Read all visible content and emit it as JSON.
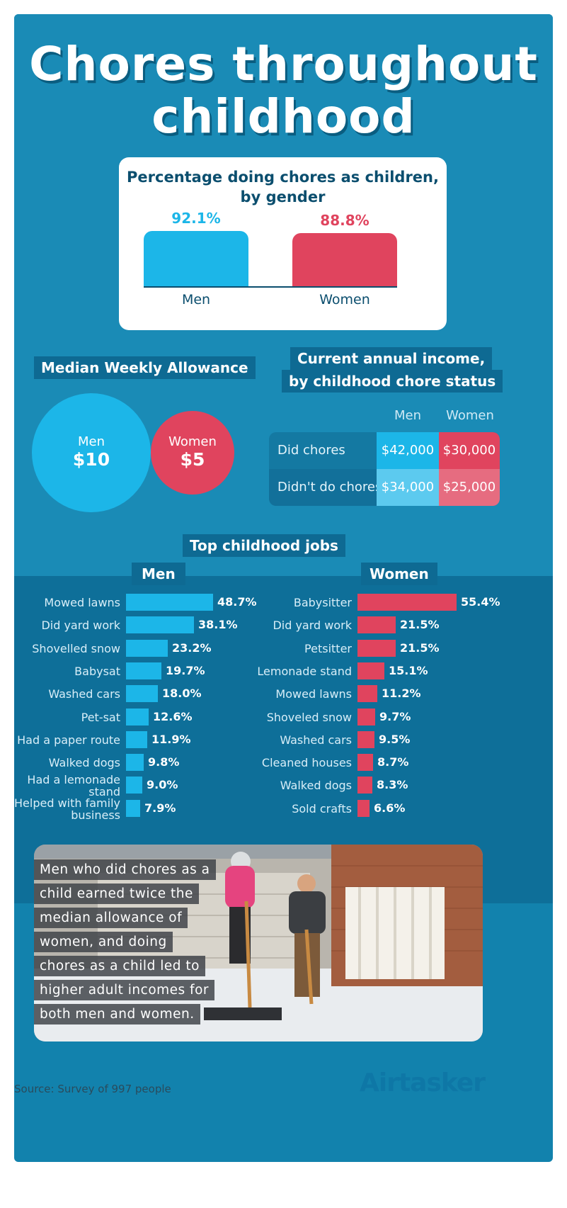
{
  "title": "Chores throughout childhood",
  "chart_data": [
    {
      "type": "bar",
      "title": "Percentage doing chores as children, by gender",
      "categories": [
        "Men",
        "Women"
      ],
      "values": [
        92.1,
        88.8
      ],
      "value_labels": [
        "92.1%",
        "88.8%"
      ],
      "colors": [
        "#1cb6e8",
        "#e0445e"
      ]
    },
    {
      "type": "bubble",
      "title": "Median Weekly Allowance",
      "categories": [
        "Men",
        "Women"
      ],
      "values": [
        10,
        5
      ],
      "value_labels": [
        "$10",
        "$5"
      ],
      "colors": [
        "#1cb6e8",
        "#e0445e"
      ]
    },
    {
      "type": "table",
      "title_lines": [
        "Current annual income,",
        "by childhood chore status"
      ],
      "columns": [
        "Men",
        "Women"
      ],
      "rows": [
        {
          "label": "Did chores",
          "values": [
            "$42,000",
            "$30,000"
          ]
        },
        {
          "label": "Didn't do chores",
          "values": [
            "$34,000",
            "$25,000"
          ]
        }
      ]
    },
    {
      "type": "bar",
      "title": "Top childhood jobs",
      "panel": "Men",
      "categories": [
        "Mowed lawns",
        "Did yard work",
        "Shovelled snow",
        "Babysat",
        "Washed cars",
        "Pet-sat",
        "Had a paper route",
        "Walked dogs",
        "Had a lemonade stand",
        "Helped with family business"
      ],
      "values": [
        48.7,
        38.1,
        23.2,
        19.7,
        18.0,
        12.6,
        11.9,
        9.8,
        9.0,
        7.9
      ],
      "value_labels": [
        "48.7%",
        "38.1%",
        "23.2%",
        "19.7%",
        "18.0%",
        "12.6%",
        "11.9%",
        "9.8%",
        "9.0%",
        "7.9%"
      ],
      "color": "#1cb6e8"
    },
    {
      "type": "bar",
      "title": "Top childhood jobs",
      "panel": "Women",
      "categories": [
        "Babysitter",
        "Did yard work",
        "Petsitter",
        "Lemonade stand",
        "Mowed lawns",
        "Shoveled snow",
        "Washed cars",
        "Cleaned houses",
        "Walked dogs",
        "Sold crafts"
      ],
      "values": [
        55.4,
        21.5,
        21.5,
        15.1,
        11.2,
        9.7,
        9.5,
        8.7,
        8.3,
        6.6
      ],
      "value_labels": [
        "55.4%",
        "21.5%",
        "21.5%",
        "15.1%",
        "11.2%",
        "9.7%",
        "9.5%",
        "8.7%",
        "8.3%",
        "6.6%"
      ],
      "color": "#e0445e"
    }
  ],
  "quote_lines": [
    "Men who did chores as a",
    "child earned twice the",
    "median allowance of",
    "women, and doing",
    "chores as a child led to",
    "higher adult incomes for",
    "both men and women."
  ],
  "footer": {
    "source": "Source: Survey of 997 people",
    "brand": "Airtasker"
  }
}
